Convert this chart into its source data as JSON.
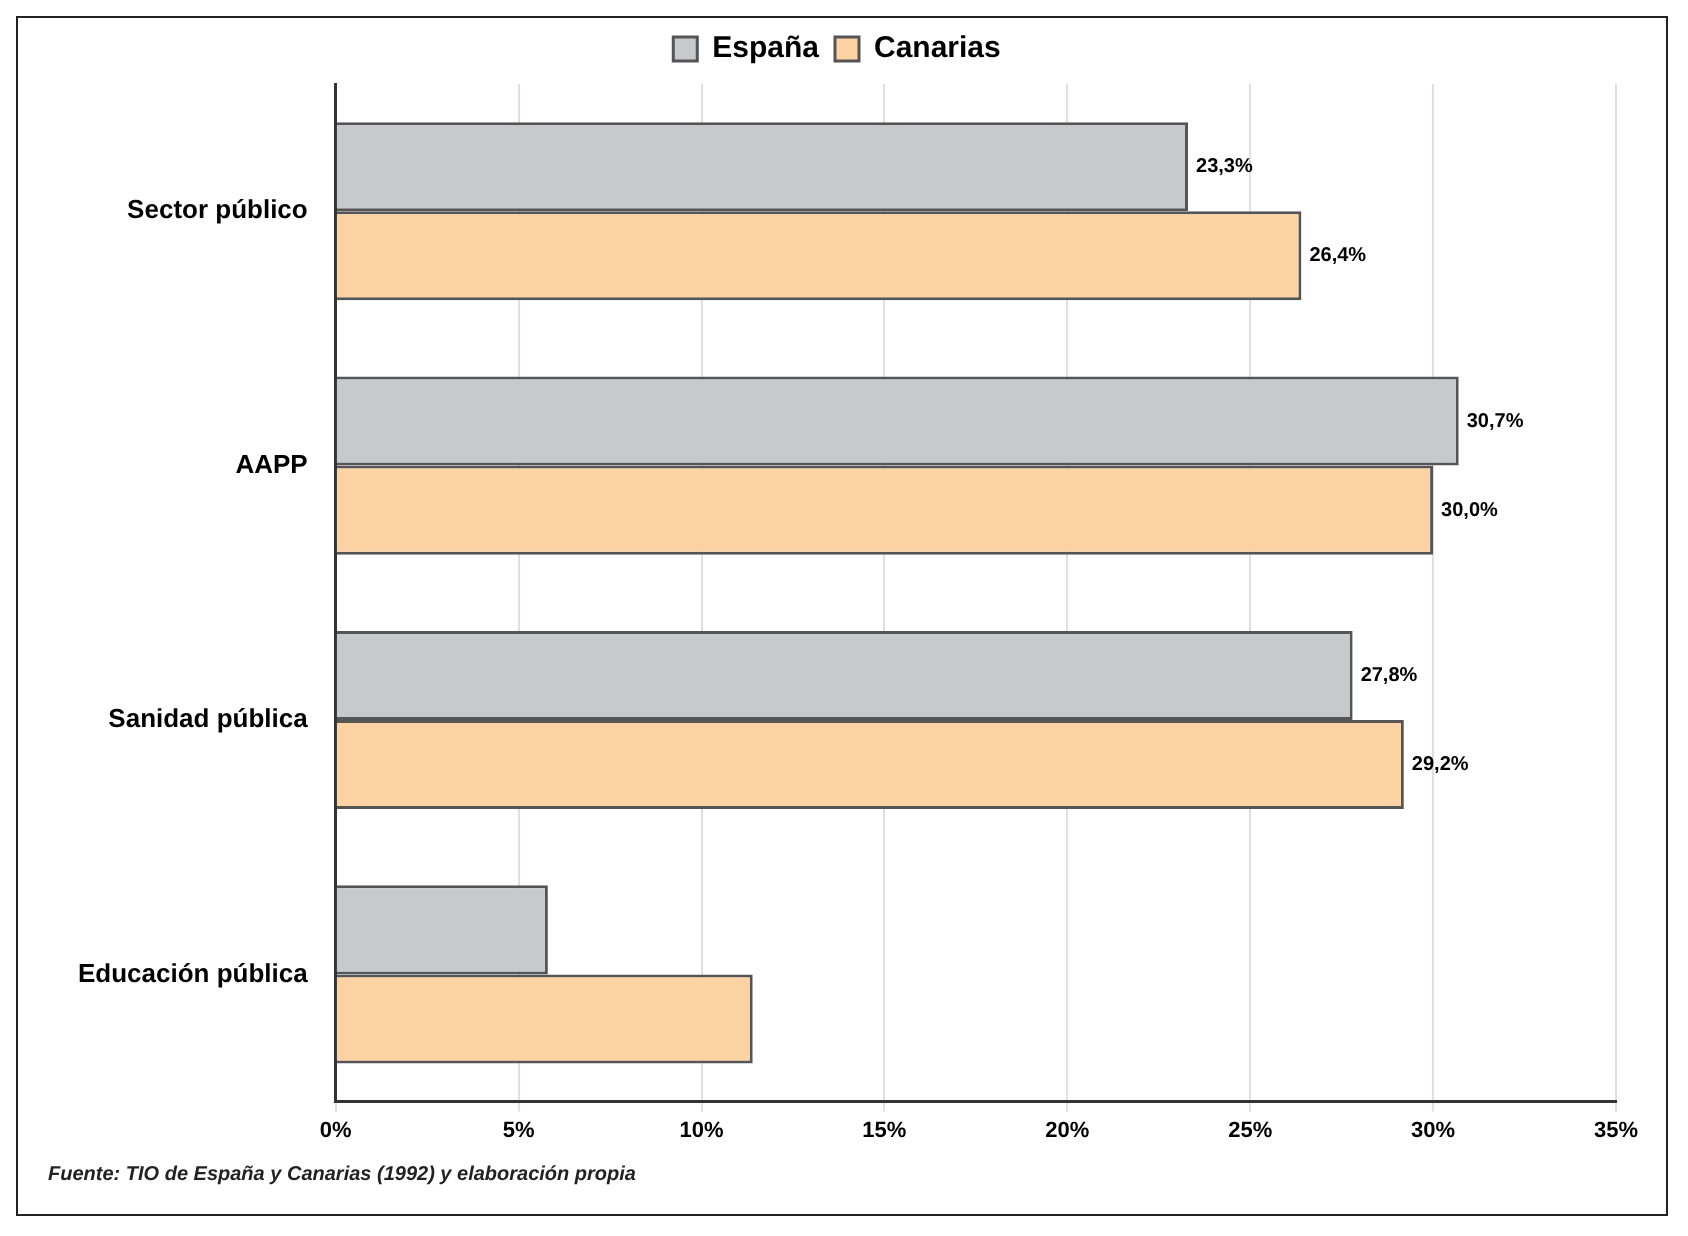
{
  "chart_data": {
    "type": "bar",
    "orientation": "horizontal",
    "categories": [
      "Sector público",
      "AAPP",
      "Sanidad pública",
      "Educación pública"
    ],
    "series": [
      {
        "name": "España",
        "color": "#c8c9cc",
        "values": [
          23.3,
          30.7,
          27.8,
          5.8
        ],
        "value_labels": [
          "23,3%",
          "30,7%",
          "27,8%",
          null
        ]
      },
      {
        "name": "Canarias",
        "color": "#fdd3a4",
        "values": [
          26.4,
          30.0,
          29.2,
          11.4
        ],
        "value_labels": [
          "26,4%",
          "30,0%",
          "29,2%",
          null
        ]
      }
    ],
    "xlim": [
      0,
      35
    ],
    "xticks": [
      {
        "value": 0,
        "label": "0%"
      },
      {
        "value": 5,
        "label": "5%"
      },
      {
        "value": 10,
        "label": "10%"
      },
      {
        "value": 15,
        "label": "15%"
      },
      {
        "value": 20,
        "label": "20%"
      },
      {
        "value": 25,
        "label": "25%"
      },
      {
        "value": 30,
        "label": "30%"
      },
      {
        "value": 35,
        "label": "35%"
      }
    ],
    "grid": "x",
    "legend": "top",
    "annotations": [
      "Fuente: TIO de España y Canarias (1992) y elaboración propia"
    ]
  }
}
